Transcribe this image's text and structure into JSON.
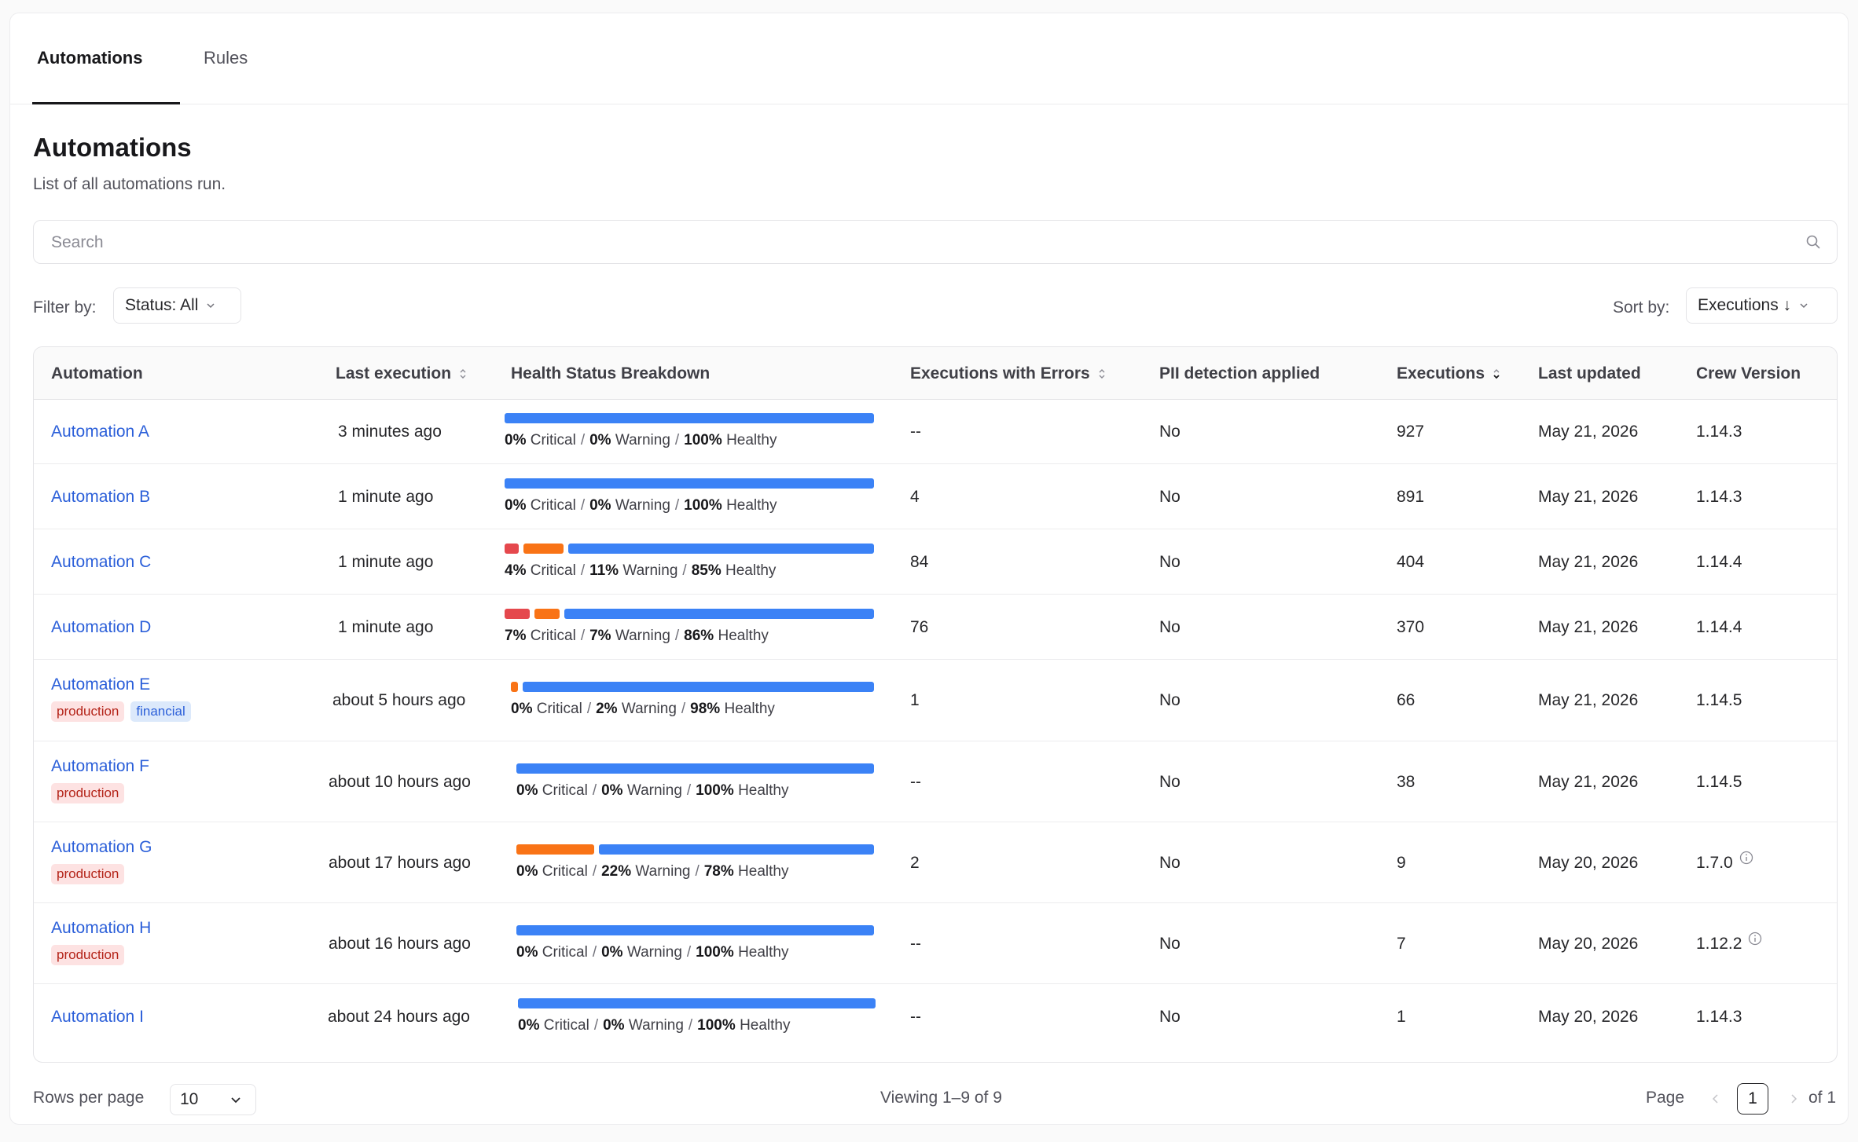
{
  "tabs": [
    {
      "label": "Automations",
      "active": true
    },
    {
      "label": "Rules",
      "active": false
    }
  ],
  "page": {
    "title": "Automations",
    "subtitle": "List of all automations run."
  },
  "search": {
    "placeholder": "Search"
  },
  "filter": {
    "label": "Filter by:",
    "status_value": "Status: All"
  },
  "sort": {
    "label": "Sort by:",
    "value": "Executions ↓"
  },
  "table": {
    "columns": [
      "Automation",
      "Last execution",
      "Health Status Breakdown",
      "Executions with Errors",
      "PII detection applied",
      "Executions",
      "Last updated",
      "Crew Version"
    ],
    "health_labels": {
      "critical": "Critical",
      "warning": "Warning",
      "healthy": "Healthy"
    },
    "rows": [
      {
        "name": "Automation A",
        "tags": [],
        "last_execution": "3 minutes ago",
        "critical": "0%",
        "warning": "0%",
        "healthy": "100%",
        "errors": "--",
        "pii": "No",
        "executions": "927",
        "updated": "May 21, 2026",
        "version": "1.14.3",
        "version_info": false
      },
      {
        "name": "Automation B",
        "tags": [],
        "last_execution": "1 minute ago",
        "critical": "0%",
        "warning": "0%",
        "healthy": "100%",
        "errors": "4",
        "pii": "No",
        "executions": "891",
        "updated": "May 21, 2026",
        "version": "1.14.3",
        "version_info": false
      },
      {
        "name": "Automation C",
        "tags": [],
        "last_execution": "1 minute ago",
        "critical": "4%",
        "warning": "11%",
        "healthy": "85%",
        "errors": "84",
        "pii": "No",
        "executions": "404",
        "updated": "May 21, 2026",
        "version": "1.14.4",
        "version_info": false
      },
      {
        "name": "Automation D",
        "tags": [],
        "last_execution": "1 minute ago",
        "critical": "7%",
        "warning": "7%",
        "healthy": "86%",
        "errors": "76",
        "pii": "No",
        "executions": "370",
        "updated": "May 21, 2026",
        "version": "1.14.4",
        "version_info": false
      },
      {
        "name": "Automation E",
        "tags": [
          "production",
          "financial"
        ],
        "last_execution": "about 5 hours ago",
        "critical": "0%",
        "warning": "2%",
        "healthy": "98%",
        "errors": "1",
        "pii": "No",
        "executions": "66",
        "updated": "May 21, 2026",
        "version": "1.14.5",
        "version_info": false
      },
      {
        "name": "Automation F",
        "tags": [
          "production"
        ],
        "last_execution": "about 10 hours ago",
        "critical": "0%",
        "warning": "0%",
        "healthy": "100%",
        "errors": "--",
        "pii": "No",
        "executions": "38",
        "updated": "May 21, 2026",
        "version": "1.14.5",
        "version_info": false
      },
      {
        "name": "Automation G",
        "tags": [
          "production"
        ],
        "last_execution": "about 17 hours ago",
        "critical": "0%",
        "warning": "22%",
        "healthy": "78%",
        "errors": "2",
        "pii": "No",
        "executions": "9",
        "updated": "May 20, 2026",
        "version": "1.7.0",
        "version_info": true
      },
      {
        "name": "Automation H",
        "tags": [
          "production"
        ],
        "last_execution": "about 16 hours ago",
        "critical": "0%",
        "warning": "0%",
        "healthy": "100%",
        "errors": "--",
        "pii": "No",
        "executions": "7",
        "updated": "May 20, 2026",
        "version": "1.12.2",
        "version_info": true
      },
      {
        "name": "Automation I",
        "tags": [],
        "last_execution": "about 24 hours ago",
        "critical": "0%",
        "warning": "0%",
        "healthy": "100%",
        "errors": "--",
        "pii": "No",
        "executions": "1",
        "updated": "May 20, 2026",
        "version": "1.14.3",
        "version_info": false
      }
    ]
  },
  "footer": {
    "rows_per_page_label": "Rows per page",
    "rows_per_page_value": "10",
    "viewing": "Viewing 1–9 of 9",
    "page_label": "Page",
    "current_page": "1",
    "of_pages": "of 1"
  },
  "colors": {
    "critical": "#e5484d",
    "warning": "#f97316",
    "healthy": "#3b82f6",
    "link": "#2b5fd9"
  }
}
